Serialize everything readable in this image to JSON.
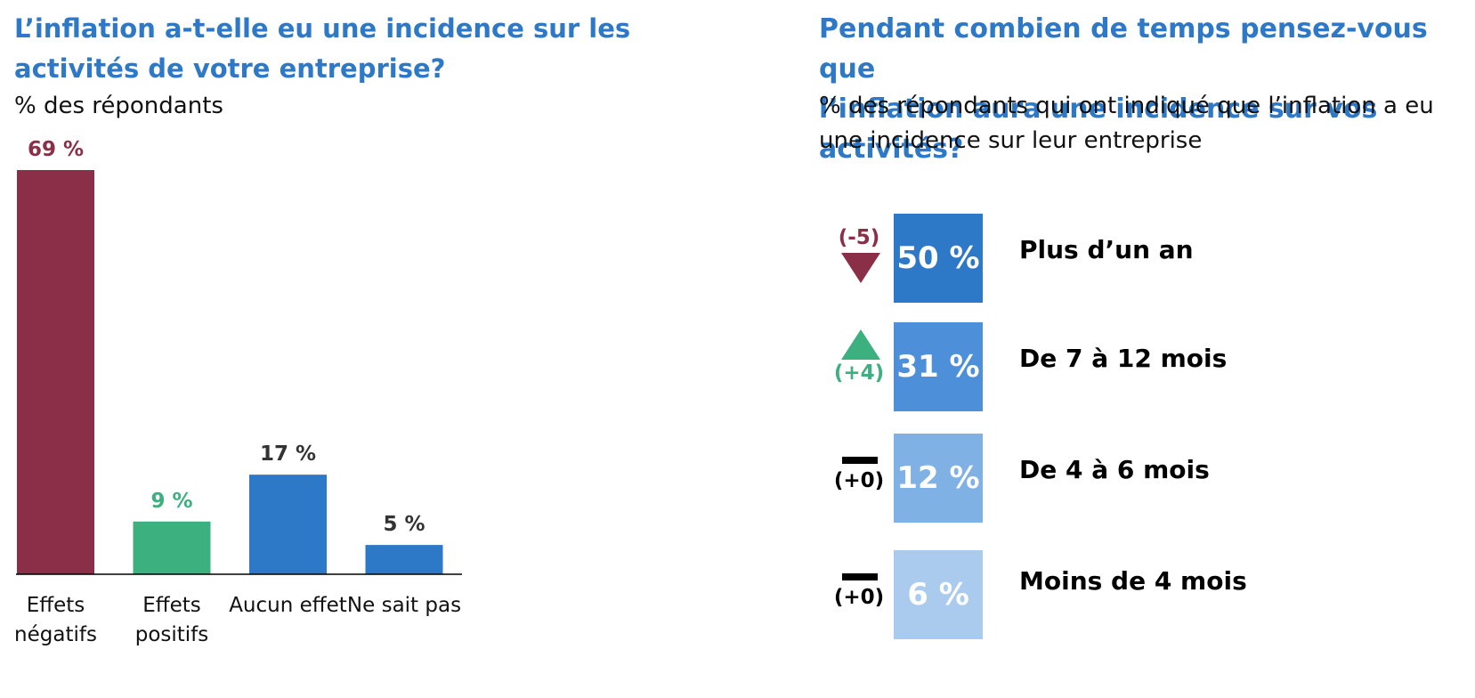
{
  "left": {
    "title": "L’inflation a-t-elle eu une incidence sur les\nactivités de votre entreprise?",
    "subtitle": "% des répondants"
  },
  "right": {
    "title": "Pendant combien de temps pensez-vous que\nl’inflation aura une incidence sur vos activités?",
    "subtitle": " % des répondants qui ont indiqué que l’inflation a eu\nune incidence sur leur entreprise",
    "rows": [
      {
        "label": "Plus d’un an",
        "value": 50,
        "value_text": "50 %",
        "change": "(-5)",
        "direction": "down",
        "color": "#2e78c8"
      },
      {
        "label": "De 7 à 12 mois",
        "value": 31,
        "value_text": "31 %",
        "change": "(+4)",
        "direction": "up",
        "color": "#4d8fd9"
      },
      {
        "label": "De 4 à 6 mois",
        "value": 12,
        "value_text": "12 %",
        "change": "(+0)",
        "direction": "flat",
        "color": "#80b1e4"
      },
      {
        "label": "Moins de 4 mois",
        "value": 6,
        "value_text": "6 %",
        "change": "(+0)",
        "direction": "flat",
        "color": "#abcbee"
      }
    ]
  },
  "colors": {
    "title": "#2e78c8",
    "negative": "#8b2e47",
    "positive": "#3db07f",
    "neutral_bar": "#2e78c8",
    "neutral_label": "#333333"
  },
  "chart_data": [
    {
      "type": "bar",
      "title": "L’inflation a-t-elle eu une incidence sur les activités de votre entreprise?",
      "subtitle": "% des répondants",
      "categories": [
        "Effets\nnégatifs",
        "Effets\npositifs",
        "Aucun effet",
        "Ne sait pas"
      ],
      "values": [
        69,
        9,
        17,
        5
      ],
      "value_labels": [
        "69 %",
        "9 %",
        "17 %",
        "5 %"
      ],
      "bar_colors": [
        "#8b2e47",
        "#3db07f",
        "#2e78c8",
        "#2e78c8"
      ],
      "label_colors": [
        "#8b2e47",
        "#3db07f",
        "#333333",
        "#333333"
      ],
      "ylim": [
        0,
        69
      ],
      "grid": false,
      "xlabel": "",
      "ylabel": ""
    },
    {
      "type": "table",
      "title": "Pendant combien de temps pensez-vous que l’inflation aura une incidence sur vos activités?",
      "subtitle": "% des répondants qui ont indiqué que l’inflation a eu une incidence sur leur entreprise",
      "categories": [
        "Plus d’un an",
        "De 7 à 12 mois",
        "De 4 à 6 mois",
        "Moins de 4 mois"
      ],
      "values": [
        50,
        31,
        12,
        6
      ],
      "changes": [
        -5,
        4,
        0,
        0
      ]
    }
  ]
}
